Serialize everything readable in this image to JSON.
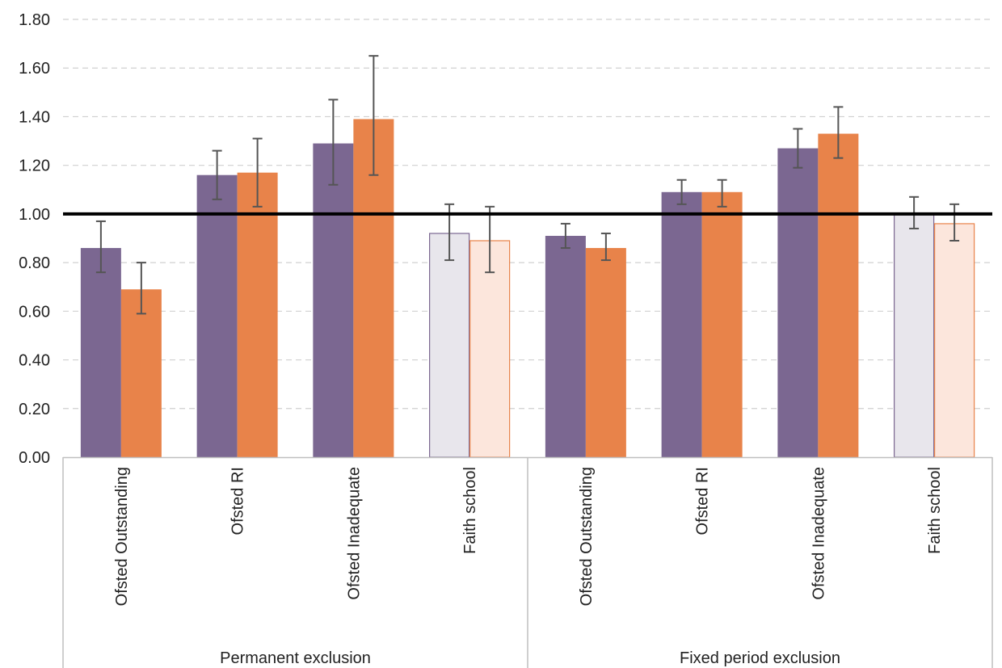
{
  "chart_data": {
    "type": "bar",
    "title": "",
    "xlabel": "",
    "ylabel": "",
    "ylim": [
      0,
      1.8
    ],
    "y_ticks": [
      "0.00",
      "0.20",
      "0.40",
      "0.60",
      "0.80",
      "1.00",
      "1.20",
      "1.40",
      "1.60",
      "1.80"
    ],
    "reference_line": 1.0,
    "grid": true,
    "legend": "none",
    "groups": [
      {
        "label": "Permanent exclusion",
        "categories": [
          {
            "label": "Ofsted Outstanding",
            "faded": false,
            "bars": [
              {
                "value": 0.86,
                "err_low": 0.76,
                "err_high": 0.97
              },
              {
                "value": 0.69,
                "err_low": 0.59,
                "err_high": 0.8
              }
            ]
          },
          {
            "label": "Ofsted RI",
            "faded": false,
            "bars": [
              {
                "value": 1.16,
                "err_low": 1.06,
                "err_high": 1.26
              },
              {
                "value": 1.17,
                "err_low": 1.03,
                "err_high": 1.31
              }
            ]
          },
          {
            "label": "Ofsted Inadequate",
            "faded": false,
            "bars": [
              {
                "value": 1.29,
                "err_low": 1.12,
                "err_high": 1.47
              },
              {
                "value": 1.39,
                "err_low": 1.16,
                "err_high": 1.65
              }
            ]
          },
          {
            "label": "Faith school",
            "faded": true,
            "bars": [
              {
                "value": 0.92,
                "err_low": 0.81,
                "err_high": 1.04
              },
              {
                "value": 0.89,
                "err_low": 0.76,
                "err_high": 1.03
              }
            ]
          }
        ]
      },
      {
        "label": "Fixed period exclusion",
        "categories": [
          {
            "label": "Ofsted Outstanding",
            "faded": false,
            "bars": [
              {
                "value": 0.91,
                "err_low": 0.86,
                "err_high": 0.96
              },
              {
                "value": 0.86,
                "err_low": 0.81,
                "err_high": 0.92
              }
            ]
          },
          {
            "label": "Ofsted RI",
            "faded": false,
            "bars": [
              {
                "value": 1.09,
                "err_low": 1.04,
                "err_high": 1.14
              },
              {
                "value": 1.09,
                "err_low": 1.03,
                "err_high": 1.14
              }
            ]
          },
          {
            "label": "Ofsted Inadequate",
            "faded": false,
            "bars": [
              {
                "value": 1.27,
                "err_low": 1.19,
                "err_high": 1.35
              },
              {
                "value": 1.33,
                "err_low": 1.23,
                "err_high": 1.44
              }
            ]
          },
          {
            "label": "Faith school",
            "faded": true,
            "bars": [
              {
                "value": 1.0,
                "err_low": 0.94,
                "err_high": 1.07
              },
              {
                "value": 0.96,
                "err_low": 0.89,
                "err_high": 1.04
              }
            ]
          }
        ]
      }
    ],
    "colors": {
      "series1": "#7b6791",
      "series2": "#e8834a",
      "series1_faded_fill": "#e8e6ec",
      "series2_faded_fill": "#fce6dc",
      "error_bar": "#555555",
      "reference_line": "#000000",
      "grid": "#d0d0d0",
      "axis": "#bfbfbf"
    }
  }
}
